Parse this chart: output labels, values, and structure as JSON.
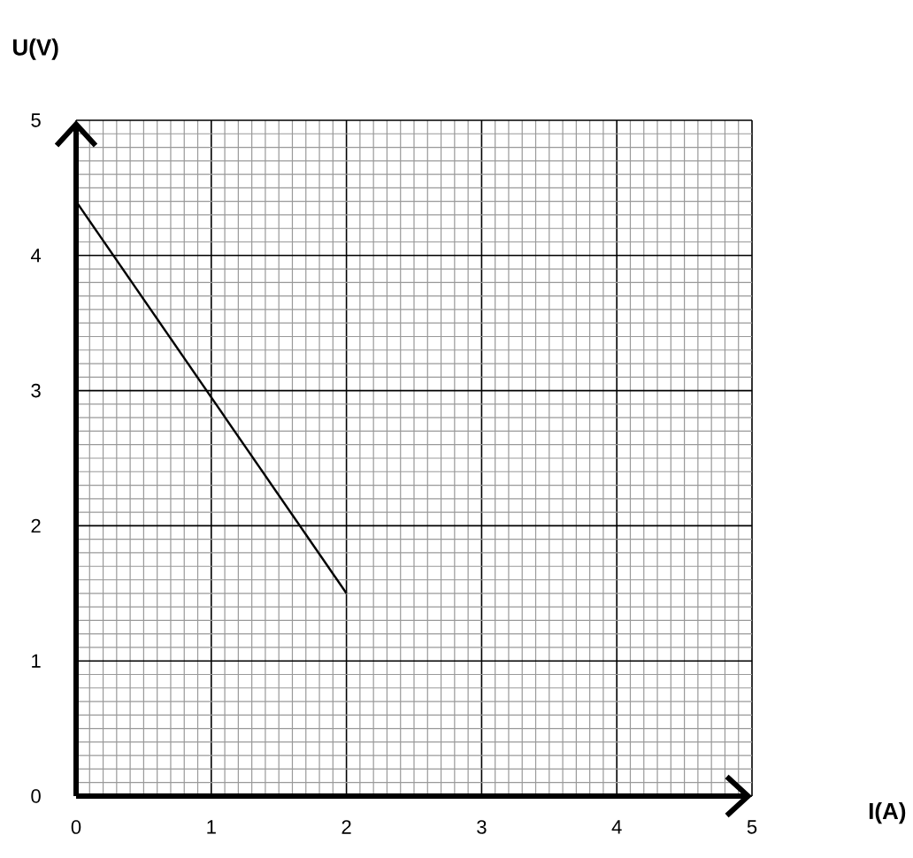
{
  "chart_data": {
    "type": "line",
    "xlabel": "I(A)",
    "ylabel": "U(V)",
    "x": [
      0,
      2
    ],
    "series": [
      {
        "color": "#000000",
        "values": [
          4.4,
          1.5
        ]
      }
    ],
    "xlim": [
      0,
      5
    ],
    "ylim": [
      0,
      5
    ],
    "xticks": [
      0,
      1,
      2,
      3,
      4,
      5
    ],
    "yticks": [
      0,
      1,
      2,
      3,
      4,
      5
    ],
    "grid": true,
    "marker": "none",
    "line_style": "solid"
  }
}
